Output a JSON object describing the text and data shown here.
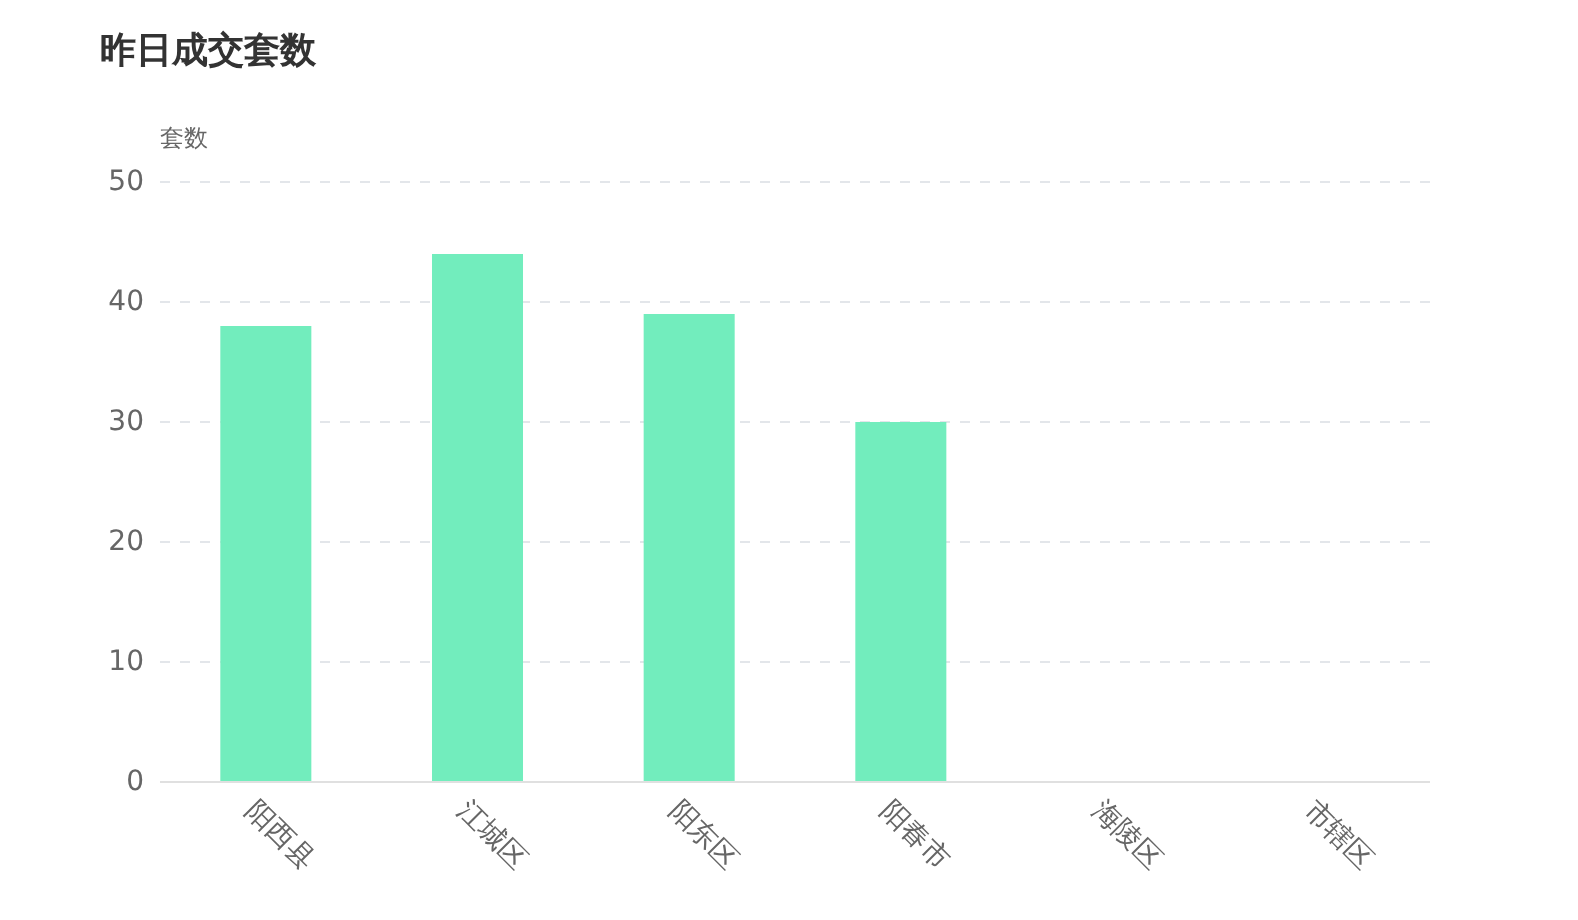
{
  "chart_data": {
    "type": "bar",
    "title": "昨日成交套数",
    "ylabel": "套数",
    "categories": [
      "阳西县",
      "江城区",
      "阳东区",
      "阳春市",
      "海陵区",
      "市辖区"
    ],
    "values": [
      38,
      44,
      39,
      30,
      0,
      0
    ],
    "color": "#72edbd",
    "ylim": [
      0,
      50
    ],
    "yticks": [
      0,
      10,
      20,
      30,
      40,
      50
    ],
    "grid": "y",
    "line_style": "dashed"
  }
}
